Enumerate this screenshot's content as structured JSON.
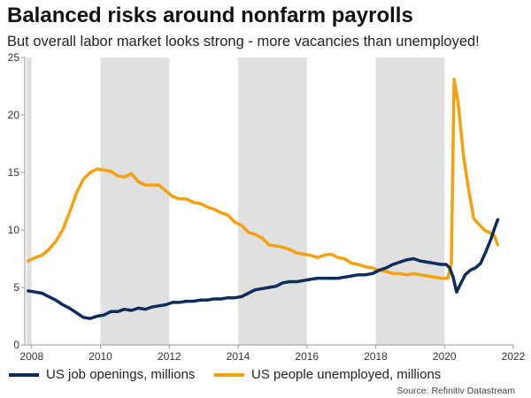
{
  "colors": {
    "jobs": "#0d2e5c",
    "unemployed": "#f5a00c",
    "recession": "#e0e0e0",
    "axis": "#999999"
  },
  "chart_data": {
    "type": "line",
    "title": "Balanced risks around nonfarm payrolls",
    "subtitle": "But overall labor market looks strong - more vacancies than unemployed!",
    "source": "Source: Refinitiv Datastream",
    "xlim": [
      2007.8,
      2022
    ],
    "ylim": [
      0,
      25
    ],
    "x_ticks": [
      2008,
      2010,
      2012,
      2014,
      2016,
      2018,
      2020,
      2022
    ],
    "y_ticks": [
      0,
      5,
      10,
      15,
      20,
      25
    ],
    "shaded_periods": [
      [
        2007.85,
        2008.0
      ],
      [
        2010.0,
        2012.0
      ],
      [
        2014.0,
        2016.0
      ],
      [
        2018.0,
        2020.0
      ]
    ],
    "series": [
      {
        "name": "US job openings, millions",
        "color": "#0d2e5c",
        "points": [
          [
            2007.9,
            4.7
          ],
          [
            2008.1,
            4.6
          ],
          [
            2008.3,
            4.5
          ],
          [
            2008.5,
            4.2
          ],
          [
            2008.7,
            3.9
          ],
          [
            2008.9,
            3.5
          ],
          [
            2009.1,
            3.2
          ],
          [
            2009.3,
            2.8
          ],
          [
            2009.5,
            2.4
          ],
          [
            2009.7,
            2.3
          ],
          [
            2009.9,
            2.5
          ],
          [
            2010.1,
            2.6
          ],
          [
            2010.3,
            2.9
          ],
          [
            2010.5,
            2.9
          ],
          [
            2010.7,
            3.1
          ],
          [
            2010.9,
            3.0
          ],
          [
            2011.1,
            3.2
          ],
          [
            2011.3,
            3.1
          ],
          [
            2011.5,
            3.3
          ],
          [
            2011.7,
            3.4
          ],
          [
            2011.9,
            3.5
          ],
          [
            2012.1,
            3.7
          ],
          [
            2012.3,
            3.7
          ],
          [
            2012.5,
            3.8
          ],
          [
            2012.7,
            3.8
          ],
          [
            2012.9,
            3.9
          ],
          [
            2013.1,
            3.9
          ],
          [
            2013.3,
            4.0
          ],
          [
            2013.5,
            4.0
          ],
          [
            2013.7,
            4.1
          ],
          [
            2013.9,
            4.1
          ],
          [
            2014.1,
            4.2
          ],
          [
            2014.3,
            4.5
          ],
          [
            2014.5,
            4.8
          ],
          [
            2014.7,
            4.9
          ],
          [
            2014.9,
            5.0
          ],
          [
            2015.1,
            5.1
          ],
          [
            2015.3,
            5.4
          ],
          [
            2015.5,
            5.5
          ],
          [
            2015.7,
            5.5
          ],
          [
            2015.9,
            5.6
          ],
          [
            2016.1,
            5.7
          ],
          [
            2016.3,
            5.8
          ],
          [
            2016.5,
            5.8
          ],
          [
            2016.7,
            5.8
          ],
          [
            2016.9,
            5.8
          ],
          [
            2017.1,
            5.9
          ],
          [
            2017.3,
            6.0
          ],
          [
            2017.5,
            6.1
          ],
          [
            2017.7,
            6.1
          ],
          [
            2017.9,
            6.2
          ],
          [
            2018.1,
            6.5
          ],
          [
            2018.3,
            6.7
          ],
          [
            2018.5,
            7.0
          ],
          [
            2018.7,
            7.2
          ],
          [
            2018.9,
            7.4
          ],
          [
            2019.1,
            7.5
          ],
          [
            2019.3,
            7.3
          ],
          [
            2019.5,
            7.2
          ],
          [
            2019.7,
            7.1
          ],
          [
            2019.9,
            7.0
          ],
          [
            2020.05,
            7.0
          ],
          [
            2020.15,
            6.7
          ],
          [
            2020.25,
            5.9
          ],
          [
            2020.35,
            4.6
          ],
          [
            2020.45,
            5.2
          ],
          [
            2020.6,
            6.1
          ],
          [
            2020.75,
            6.5
          ],
          [
            2020.9,
            6.7
          ],
          [
            2021.05,
            7.1
          ],
          [
            2021.2,
            8.1
          ],
          [
            2021.35,
            9.2
          ],
          [
            2021.45,
            10.1
          ],
          [
            2021.55,
            10.9
          ]
        ]
      },
      {
        "name": "US people unemployed, millions",
        "color": "#f5a00c",
        "points": [
          [
            2007.9,
            7.3
          ],
          [
            2008.1,
            7.6
          ],
          [
            2008.3,
            7.8
          ],
          [
            2008.5,
            8.3
          ],
          [
            2008.7,
            9.0
          ],
          [
            2008.9,
            10.0
          ],
          [
            2009.1,
            11.5
          ],
          [
            2009.3,
            13.2
          ],
          [
            2009.5,
            14.4
          ],
          [
            2009.7,
            15.0
          ],
          [
            2009.9,
            15.3
          ],
          [
            2010.1,
            15.2
          ],
          [
            2010.3,
            15.1
          ],
          [
            2010.5,
            14.7
          ],
          [
            2010.7,
            14.6
          ],
          [
            2010.9,
            14.9
          ],
          [
            2011.1,
            14.2
          ],
          [
            2011.3,
            13.9
          ],
          [
            2011.5,
            13.9
          ],
          [
            2011.7,
            13.9
          ],
          [
            2011.9,
            13.4
          ],
          [
            2012.1,
            12.9
          ],
          [
            2012.3,
            12.7
          ],
          [
            2012.5,
            12.7
          ],
          [
            2012.7,
            12.4
          ],
          [
            2012.9,
            12.3
          ],
          [
            2013.1,
            12.0
          ],
          [
            2013.3,
            11.8
          ],
          [
            2013.5,
            11.5
          ],
          [
            2013.7,
            11.3
          ],
          [
            2013.9,
            10.7
          ],
          [
            2014.1,
            10.4
          ],
          [
            2014.3,
            9.8
          ],
          [
            2014.5,
            9.6
          ],
          [
            2014.7,
            9.3
          ],
          [
            2014.9,
            8.7
          ],
          [
            2015.1,
            8.6
          ],
          [
            2015.3,
            8.5
          ],
          [
            2015.5,
            8.3
          ],
          [
            2015.7,
            8.0
          ],
          [
            2015.9,
            7.9
          ],
          [
            2016.1,
            7.8
          ],
          [
            2016.3,
            7.6
          ],
          [
            2016.5,
            7.8
          ],
          [
            2016.7,
            7.9
          ],
          [
            2016.9,
            7.6
          ],
          [
            2017.1,
            7.5
          ],
          [
            2017.3,
            7.1
          ],
          [
            2017.5,
            7.0
          ],
          [
            2017.7,
            6.8
          ],
          [
            2017.9,
            6.7
          ],
          [
            2018.1,
            6.5
          ],
          [
            2018.3,
            6.4
          ],
          [
            2018.5,
            6.2
          ],
          [
            2018.7,
            6.2
          ],
          [
            2018.9,
            6.1
          ],
          [
            2019.1,
            6.2
          ],
          [
            2019.3,
            6.1
          ],
          [
            2019.5,
            6.0
          ],
          [
            2019.7,
            5.9
          ],
          [
            2019.9,
            5.8
          ],
          [
            2020.1,
            5.8
          ],
          [
            2020.2,
            7.1
          ],
          [
            2020.28,
            23.1
          ],
          [
            2020.4,
            21.0
          ],
          [
            2020.55,
            16.5
          ],
          [
            2020.7,
            13.5
          ],
          [
            2020.85,
            11.0
          ],
          [
            2021.0,
            10.5
          ],
          [
            2021.15,
            10.0
          ],
          [
            2021.3,
            9.8
          ],
          [
            2021.45,
            9.5
          ],
          [
            2021.55,
            8.7
          ]
        ]
      }
    ]
  }
}
